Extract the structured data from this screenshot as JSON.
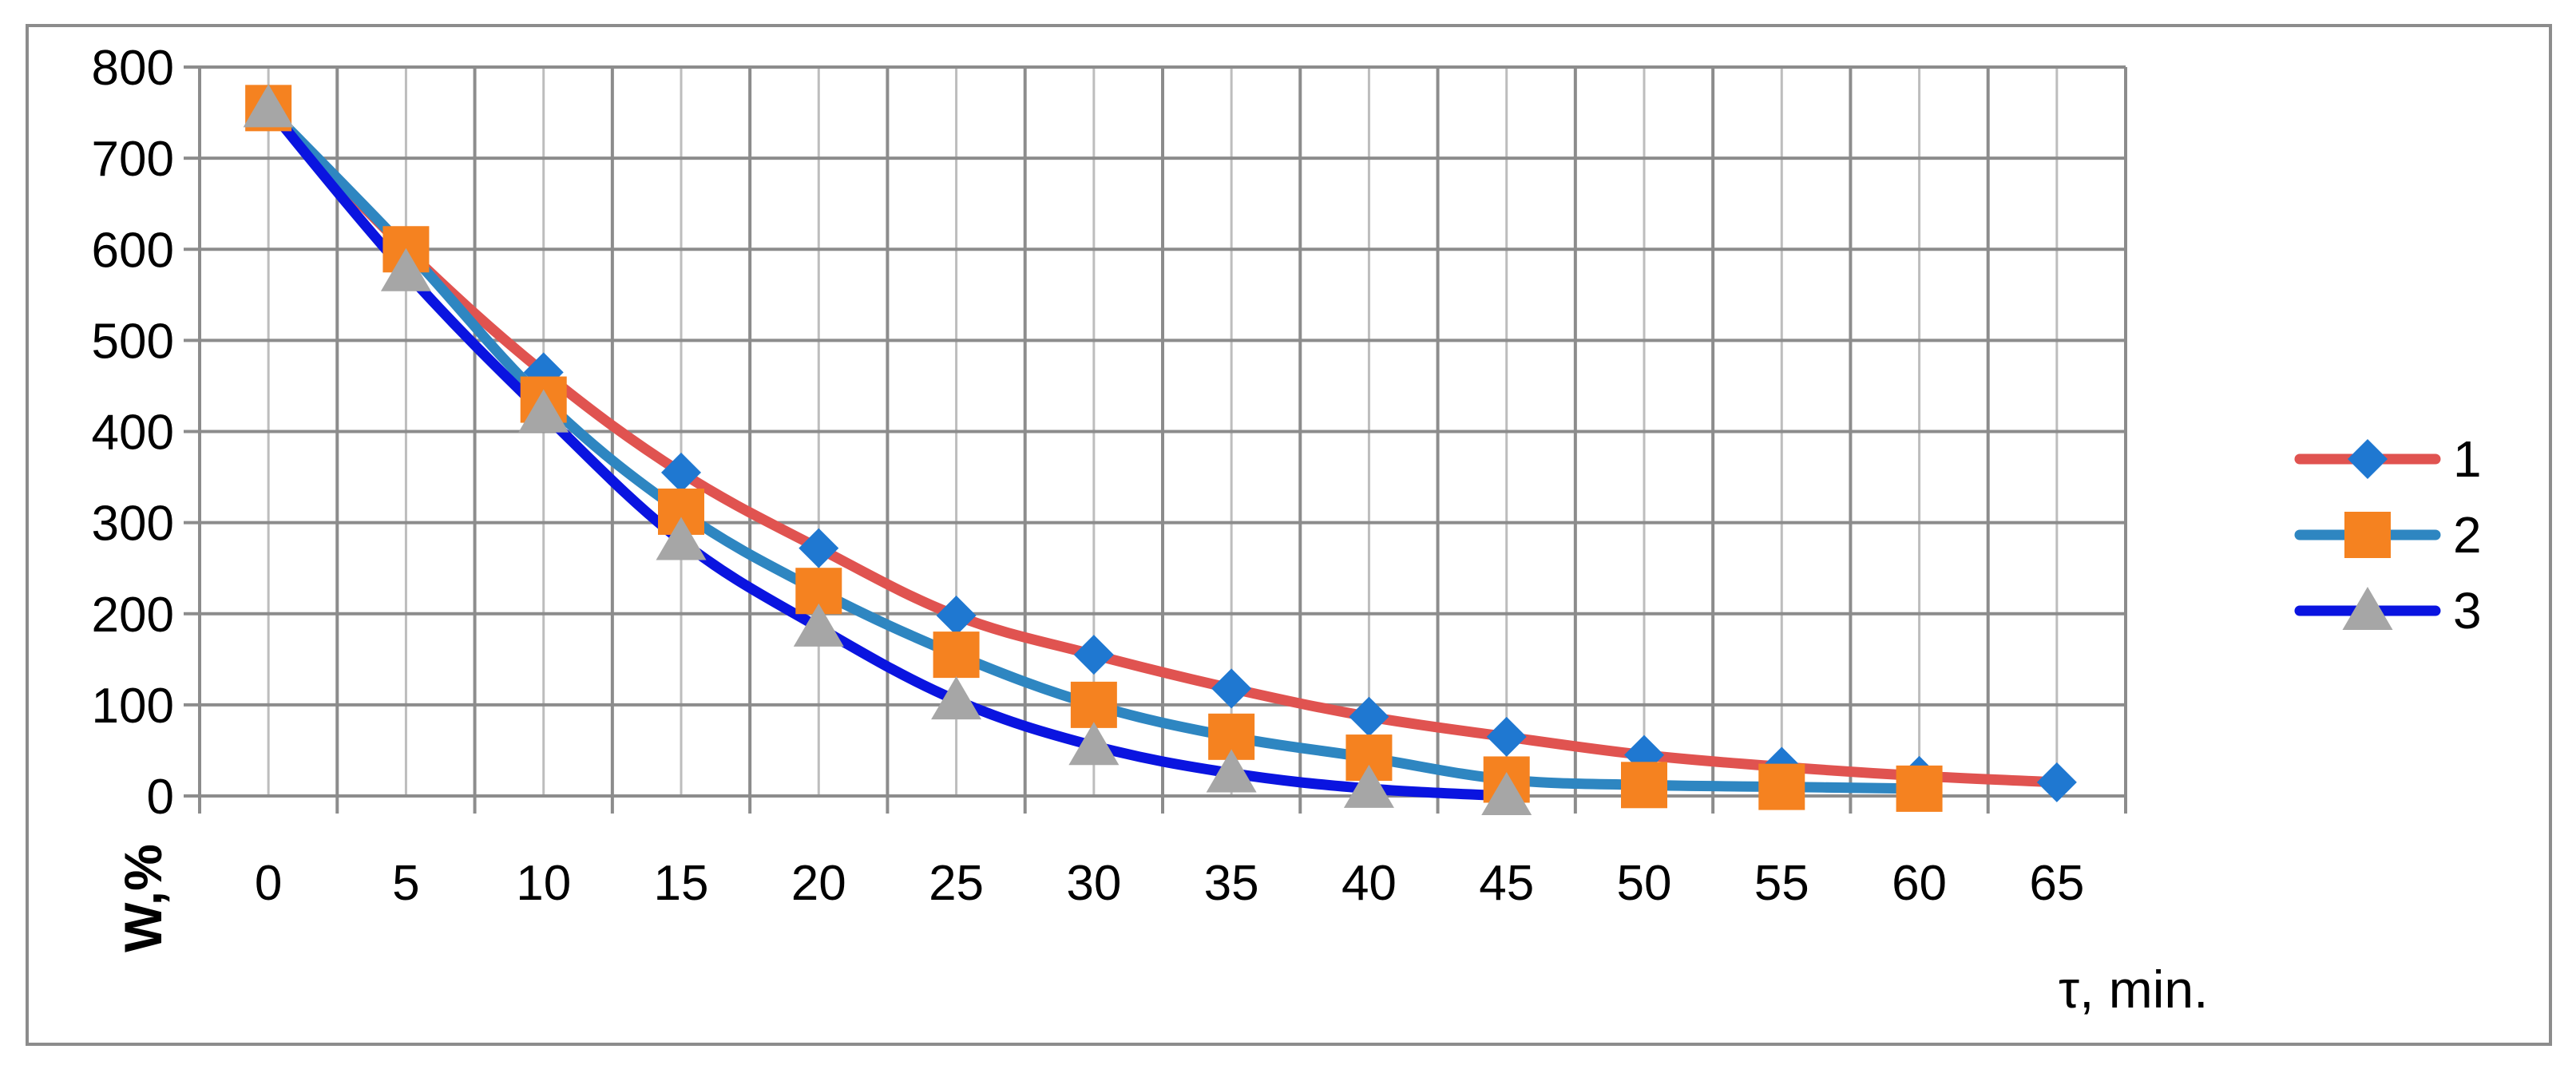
{
  "chart_data": {
    "type": "line",
    "title": "",
    "xlabel": "τ, min.",
    "ylabel": "W,%",
    "x": [
      0,
      5,
      10,
      15,
      20,
      25,
      30,
      35,
      40,
      45,
      50,
      55,
      60,
      65
    ],
    "xticks": [
      "0",
      "5",
      "10",
      "15",
      "20",
      "25",
      "30",
      "35",
      "40",
      "45",
      "50",
      "55",
      "60",
      "65"
    ],
    "yticks": [
      "0",
      "100",
      "200",
      "300",
      "400",
      "500",
      "600",
      "700",
      "800"
    ],
    "xlim": [
      -2.5,
      67.5
    ],
    "ylim": [
      0,
      800
    ],
    "grid": true,
    "legend_position": "right",
    "series": [
      {
        "name": "1",
        "color": "#e05350",
        "marker": "diamond",
        "marker_color": "#1f78d1",
        "x": [
          0,
          5,
          10,
          15,
          20,
          25,
          30,
          35,
          40,
          45,
          50,
          55,
          60,
          65
        ],
        "values": [
          755,
          600,
          465,
          355,
          272,
          198,
          155,
          118,
          87,
          65,
          45,
          32,
          22,
          15
        ]
      },
      {
        "name": "2",
        "color": "#2e86c1",
        "marker": "square",
        "marker_color": "#f58220",
        "x": [
          0,
          5,
          10,
          15,
          20,
          25,
          30,
          35,
          40,
          45,
          50,
          55,
          60
        ],
        "values": [
          755,
          600,
          435,
          312,
          225,
          155,
          100,
          65,
          42,
          18,
          12,
          10,
          8
        ]
      },
      {
        "name": "3",
        "color": "#0a14e0",
        "marker": "triangle",
        "marker_color": "#a6a6a6",
        "x": [
          0,
          5,
          10,
          15,
          20,
          25,
          30,
          35,
          40,
          45
        ],
        "values": [
          755,
          575,
          420,
          280,
          185,
          105,
          55,
          25,
          8,
          0
        ]
      }
    ]
  }
}
